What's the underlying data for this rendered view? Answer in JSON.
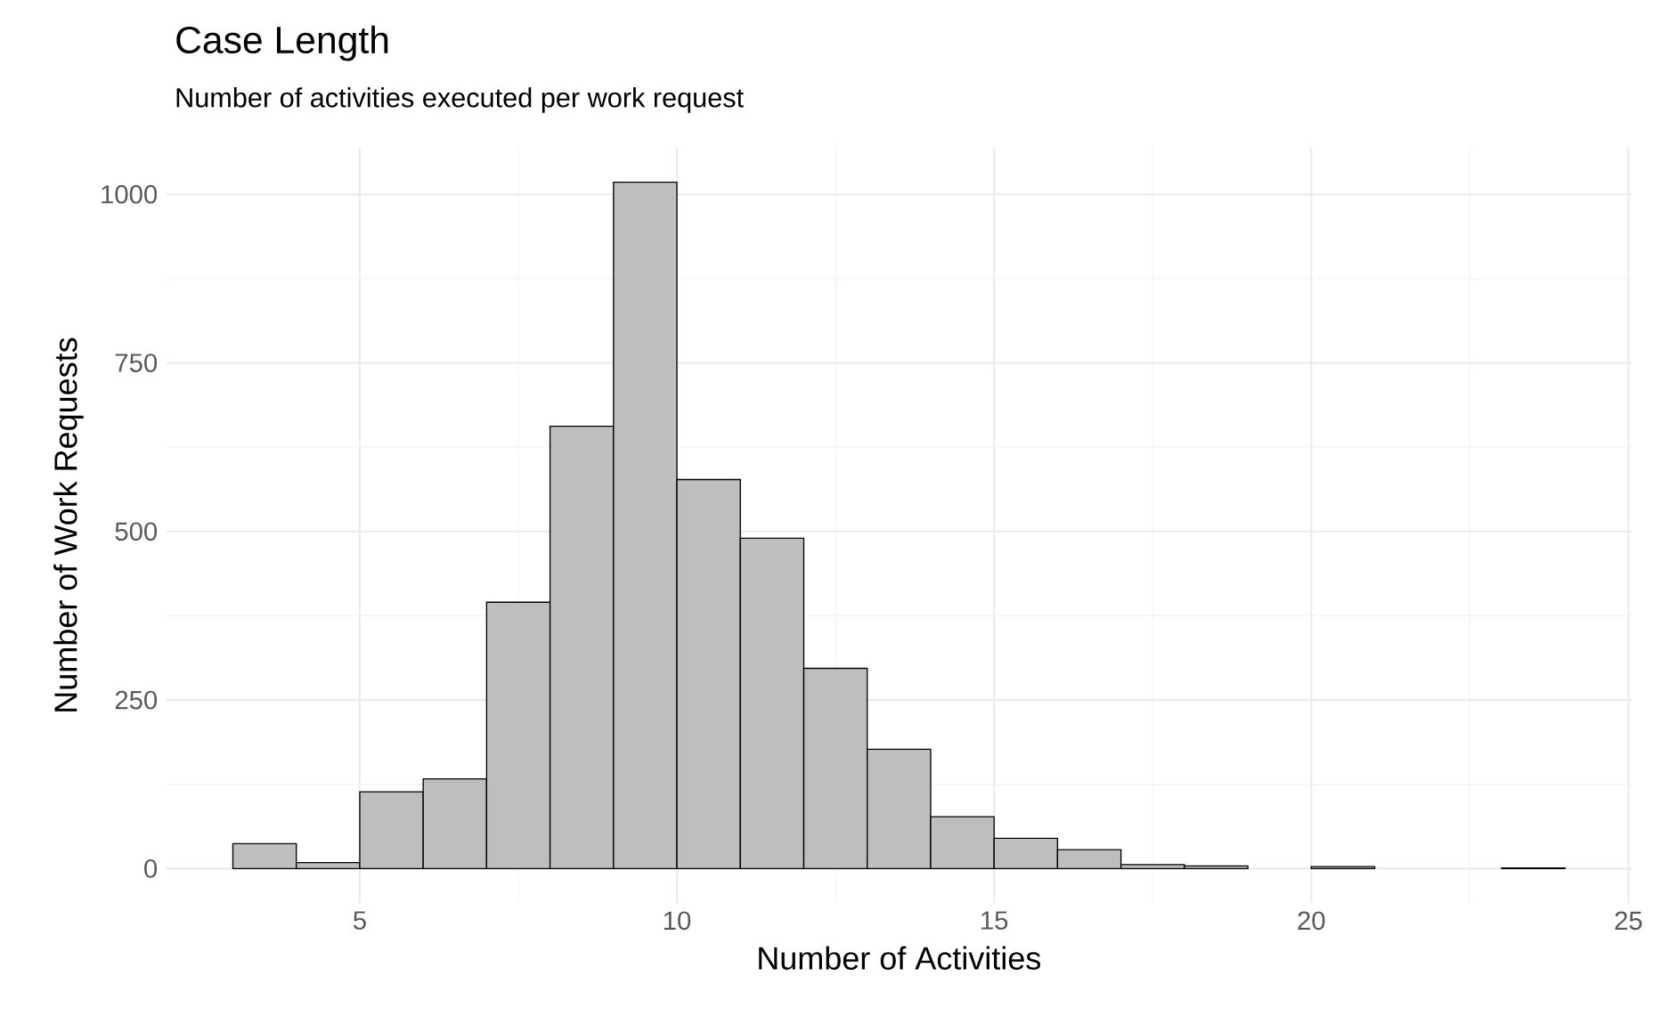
{
  "chart_data": {
    "type": "histogram",
    "title": "Case Length",
    "subtitle": "Number of activities executed per work request",
    "xlabel": "Number of Activities",
    "ylabel": "Number of Work Requests",
    "bins": [
      3,
      4,
      5,
      6,
      7,
      8,
      9,
      10,
      11,
      12,
      13,
      14,
      15,
      16,
      17,
      18,
      19,
      20,
      21,
      22,
      23,
      24
    ],
    "values": [
      37,
      9,
      114,
      133,
      395,
      656,
      1018,
      577,
      490,
      297,
      177,
      77,
      45,
      28,
      6,
      4,
      0,
      3,
      0,
      0,
      1
    ],
    "color": "#bebebe",
    "xlim": [
      1.95,
      25.05
    ],
    "ylim": [
      -51,
      1069
    ],
    "xticks": [
      5,
      10,
      15,
      20,
      25
    ],
    "yticks": [
      0,
      250,
      500,
      750,
      1000
    ],
    "grid": true
  }
}
